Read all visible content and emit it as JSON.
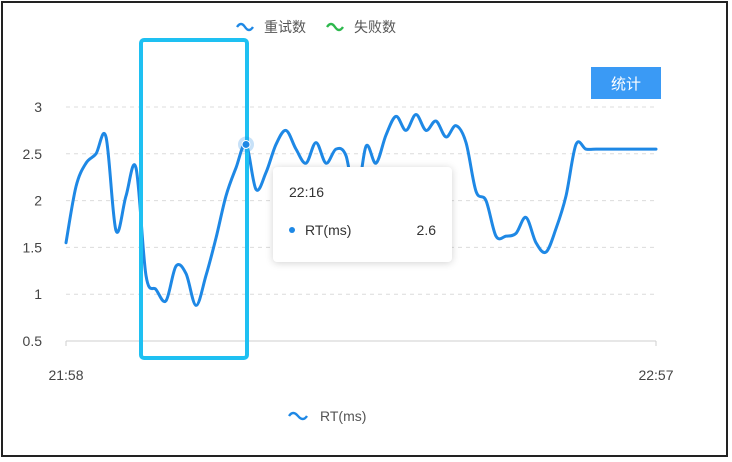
{
  "legend_top": [
    {
      "name": "重试数",
      "color": "#1e88e5"
    },
    {
      "name": "失败数",
      "color": "#2db84d"
    }
  ],
  "stats_button": {
    "label": "统计",
    "color": "#3a9af5"
  },
  "tooltip": {
    "time": "22:16",
    "series": "RT(ms)",
    "value": "2.6"
  },
  "highlight_color": "#1ec0f2",
  "chart_data": {
    "type": "line",
    "title": "",
    "xlabel": "",
    "ylabel": "",
    "x_range": [
      "21:58",
      "22:57"
    ],
    "xlim": [
      0,
      59
    ],
    "ylim": [
      0.5,
      3
    ],
    "y_ticks": [
      "0.5",
      "1",
      "1.5",
      "2",
      "2.5",
      "3"
    ],
    "x_ticks": [
      {
        "label": "21:58",
        "x": 0
      },
      {
        "label": "22:57",
        "x": 59
      }
    ],
    "grid": true,
    "legend": "bottom",
    "highlight_range_x": [
      7.5,
      18.1
    ],
    "active_point": {
      "x": 18.0,
      "y": 2.6
    },
    "series": [
      {
        "name": "RT(ms)",
        "color": "#1e88e5",
        "x": [
          0,
          1,
          2,
          3,
          4,
          5,
          6,
          7,
          8,
          9,
          10,
          11,
          12,
          13,
          14,
          15,
          16,
          17,
          18,
          19,
          20,
          21,
          22,
          23,
          24,
          25,
          26,
          27,
          28,
          29,
          30,
          31,
          32,
          33,
          34,
          35,
          36,
          37,
          38,
          39,
          40,
          41,
          42,
          43,
          44,
          45,
          46,
          47,
          48,
          49,
          50,
          51,
          52,
          53,
          54,
          55,
          56,
          57,
          58,
          59
        ],
        "values": [
          1.55,
          2.15,
          2.4,
          2.5,
          2.68,
          1.68,
          2.05,
          2.35,
          1.2,
          1.05,
          0.93,
          1.3,
          1.22,
          0.88,
          1.2,
          1.6,
          2.05,
          2.35,
          2.6,
          2.12,
          2.3,
          2.6,
          2.75,
          2.55,
          2.4,
          2.62,
          2.4,
          2.55,
          2.48,
          2.0,
          2.58,
          2.4,
          2.7,
          2.9,
          2.75,
          2.92,
          2.75,
          2.85,
          2.68,
          2.8,
          2.62,
          2.1,
          2.0,
          1.62,
          1.62,
          1.65,
          1.82,
          1.55,
          1.45,
          1.7,
          2.05,
          2.6,
          2.55,
          2.55,
          2.55,
          2.55,
          2.55,
          2.55,
          2.55,
          2.55
        ]
      }
    ]
  }
}
